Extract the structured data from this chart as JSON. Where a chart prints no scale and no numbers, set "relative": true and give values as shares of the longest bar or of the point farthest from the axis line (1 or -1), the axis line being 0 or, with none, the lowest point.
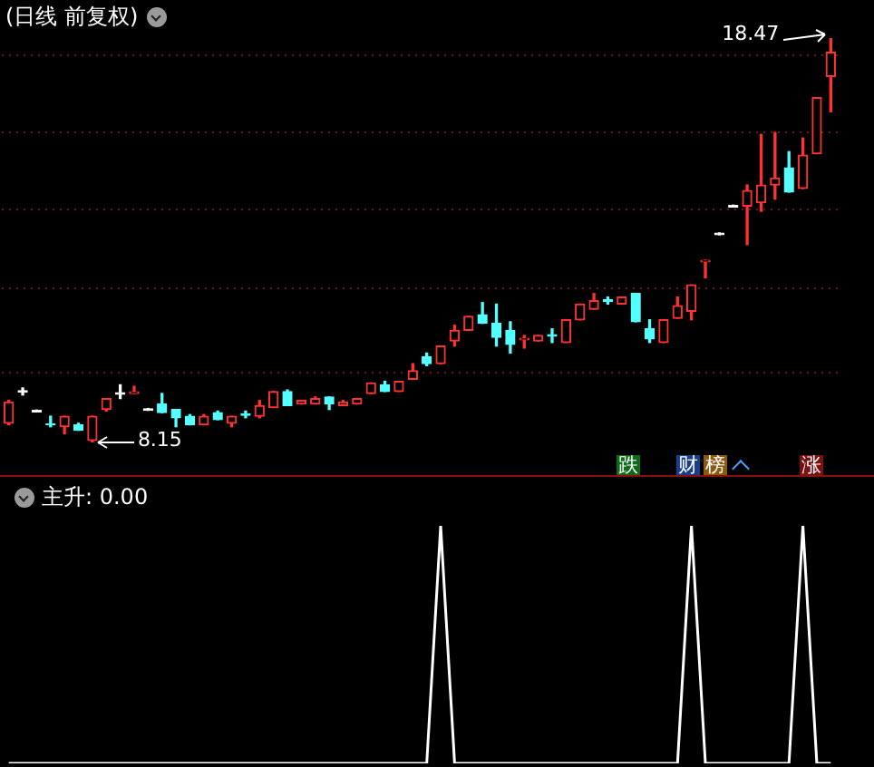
{
  "chart_data": [
    {
      "type": "candlestick",
      "title": "(日线 前复权)",
      "legend": false,
      "tick_labels": false,
      "grid": "y",
      "yticks": [
        {
          "value": 9.94,
          "label": null
        },
        {
          "value": 12.08,
          "label": null
        },
        {
          "value": 14.09,
          "label": null
        },
        {
          "value": 16.06,
          "label": null
        },
        {
          "value": 18.02,
          "label": null
        }
      ],
      "categories": [
        null,
        null,
        null,
        null,
        null,
        null,
        null,
        null,
        null,
        null,
        null,
        null,
        null,
        null,
        null,
        null,
        null,
        null,
        null,
        null,
        null,
        null,
        null,
        null,
        null,
        null,
        null,
        null,
        null,
        null,
        null,
        null,
        null,
        null,
        null,
        null,
        null,
        null,
        null,
        null,
        null,
        null,
        null,
        null,
        null,
        null,
        null,
        null,
        null,
        null,
        null,
        null,
        null,
        null,
        null,
        null,
        null,
        null,
        null,
        null
      ],
      "ohlc": [
        [
          8.64,
          9.22,
          8.6,
          9.18
        ],
        [
          9.47,
          9.54,
          9.36,
          9.43
        ],
        [
          8.97,
          8.97,
          8.93,
          8.93
        ],
        [
          8.62,
          8.82,
          8.55,
          8.6
        ],
        [
          8.55,
          8.82,
          8.37,
          8.82
        ],
        [
          8.6,
          8.64,
          8.46,
          8.46
        ],
        [
          8.2,
          8.82,
          8.15,
          8.82
        ],
        [
          8.99,
          9.27,
          8.95,
          9.27
        ],
        [
          9.42,
          9.62,
          9.27,
          9.38
        ],
        [
          9.4,
          9.58,
          9.4,
          9.44
        ],
        [
          9.01,
          9.01,
          8.97,
          8.97
        ],
        [
          9.13,
          9.4,
          8.91,
          8.91
        ],
        [
          8.99,
          8.99,
          8.55,
          8.78
        ],
        [
          8.82,
          8.86,
          8.6,
          8.6
        ],
        [
          8.6,
          8.86,
          8.6,
          8.82
        ],
        [
          8.91,
          8.95,
          8.73,
          8.73
        ],
        [
          8.64,
          8.82,
          8.55,
          8.82
        ],
        [
          8.88,
          8.95,
          8.78,
          8.84
        ],
        [
          8.82,
          9.22,
          8.78,
          9.09
        ],
        [
          9.04,
          9.45,
          9.04,
          9.45
        ],
        [
          9.45,
          9.49,
          9.09,
          9.09
        ],
        [
          9.13,
          9.22,
          9.13,
          9.22
        ],
        [
          9.13,
          9.31,
          9.13,
          9.27
        ],
        [
          9.31,
          9.31,
          8.99,
          9.13
        ],
        [
          9.09,
          9.22,
          9.09,
          9.18
        ],
        [
          9.13,
          9.27,
          9.13,
          9.27
        ],
        [
          9.4,
          9.67,
          9.4,
          9.67
        ],
        [
          9.62,
          9.71,
          9.45,
          9.45
        ],
        [
          9.45,
          9.71,
          9.45,
          9.71
        ],
        [
          9.76,
          10.16,
          9.76,
          9.98
        ],
        [
          10.34,
          10.43,
          10.11,
          10.16
        ],
        [
          10.16,
          10.61,
          10.16,
          10.61
        ],
        [
          10.74,
          11.14,
          10.61,
          11.01
        ],
        [
          11.01,
          11.37,
          11.01,
          11.37
        ],
        [
          11.41,
          11.72,
          11.19,
          11.19
        ],
        [
          11.19,
          11.68,
          10.61,
          10.83
        ],
        [
          11.01,
          11.23,
          10.43,
          10.65
        ],
        [
          10.77,
          10.88,
          10.56,
          10.81
        ],
        [
          10.74,
          10.88,
          10.74,
          10.88
        ],
        [
          10.9,
          11.05,
          10.7,
          10.86
        ],
        [
          10.7,
          11.28,
          10.7,
          11.28
        ],
        [
          11.28,
          11.68,
          11.28,
          11.68
        ],
        [
          11.55,
          11.95,
          11.55,
          11.77
        ],
        [
          11.79,
          11.86,
          11.68,
          11.75
        ],
        [
          11.68,
          11.86,
          11.68,
          11.86
        ],
        [
          11.95,
          11.95,
          11.23,
          11.23
        ],
        [
          11.05,
          11.28,
          10.7,
          10.79
        ],
        [
          10.7,
          11.28,
          10.7,
          11.28
        ],
        [
          11.32,
          11.86,
          11.32,
          11.64
        ],
        [
          11.5,
          12.17,
          11.28,
          12.17
        ],
        [
          12.76,
          12.8,
          12.35,
          12.8
        ],
        [
          13.49,
          13.49,
          13.45,
          13.45
        ],
        [
          14.2,
          14.2,
          14.16,
          14.16
        ],
        [
          14.18,
          14.72,
          13.2,
          14.58
        ],
        [
          14.27,
          16.01,
          14.05,
          14.72
        ],
        [
          14.72,
          16.06,
          14.36,
          14.9
        ],
        [
          15.16,
          15.57,
          14.54,
          14.54
        ],
        [
          14.63,
          15.92,
          14.63,
          15.48
        ],
        [
          15.52,
          16.95,
          15.52,
          16.95
        ],
        [
          17.49,
          18.47,
          16.59,
          18.11
        ]
      ],
      "colors": [
        "#ff3232",
        "#ffffff",
        "#ffffff",
        "#54ffff",
        "#ff3232",
        "#54ffff",
        "#ff3232",
        "#ff3232",
        "#ffffff",
        "#ff3232",
        "#ffffff",
        "#54ffff",
        "#54ffff",
        "#54ffff",
        "#ff3232",
        "#54ffff",
        "#ff3232",
        "#54ffff",
        "#ff3232",
        "#ff3232",
        "#54ffff",
        "#ff3232",
        "#ff3232",
        "#54ffff",
        "#ff3232",
        "#ff3232",
        "#ff3232",
        "#54ffff",
        "#ff3232",
        "#ff3232",
        "#54ffff",
        "#ff3232",
        "#ff3232",
        "#ff3232",
        "#54ffff",
        "#54ffff",
        "#54ffff",
        "#ff3232",
        "#ff3232",
        "#54ffff",
        "#ff3232",
        "#ff3232",
        "#ff3232",
        "#54ffff",
        "#ff3232",
        "#54ffff",
        "#54ffff",
        "#ff3232",
        "#ff3232",
        "#ff3232",
        "#ff3232",
        "#ffffff",
        "#ffffff",
        "#ff3232",
        "#ff3232",
        "#ff3232",
        "#54ffff",
        "#ff3232",
        "#ff3232",
        "#ff3232"
      ],
      "annotations": [
        "18.47",
        "8.15",
        "跌",
        "财",
        "榜",
        "涨"
      ]
    },
    {
      "type": "line",
      "title": "主升: 0.00",
      "relative": true,
      "legend": false,
      "tick_labels": false,
      "marker": "none",
      "line_style": "solid",
      "categories": [
        null,
        null,
        null,
        null,
        null,
        null,
        null,
        null,
        null,
        null,
        null,
        null,
        null,
        null,
        null,
        null,
        null,
        null,
        null,
        null,
        null,
        null,
        null,
        null,
        null,
        null,
        null,
        null,
        null,
        null,
        null,
        null,
        null,
        null,
        null,
        null,
        null,
        null,
        null,
        null,
        null,
        null,
        null,
        null,
        null,
        null,
        null,
        null,
        null,
        null,
        null,
        null,
        null,
        null,
        null,
        null,
        null,
        null,
        null,
        null
      ],
      "series": [
        {
          "color": "#ffffff",
          "values": [
            0,
            0,
            0,
            0,
            0,
            0,
            0,
            0,
            0,
            0,
            0,
            0,
            0,
            0,
            0,
            0,
            0,
            0,
            0,
            0,
            0,
            0,
            0,
            0,
            0,
            0,
            0,
            0,
            0,
            0,
            0,
            1,
            0,
            0,
            0,
            0,
            0,
            0,
            0,
            0,
            0,
            0,
            0,
            0,
            0,
            0,
            0,
            0,
            0,
            1,
            0,
            0,
            0,
            0,
            0,
            0,
            0,
            1,
            0,
            0
          ]
        }
      ]
    }
  ]
}
